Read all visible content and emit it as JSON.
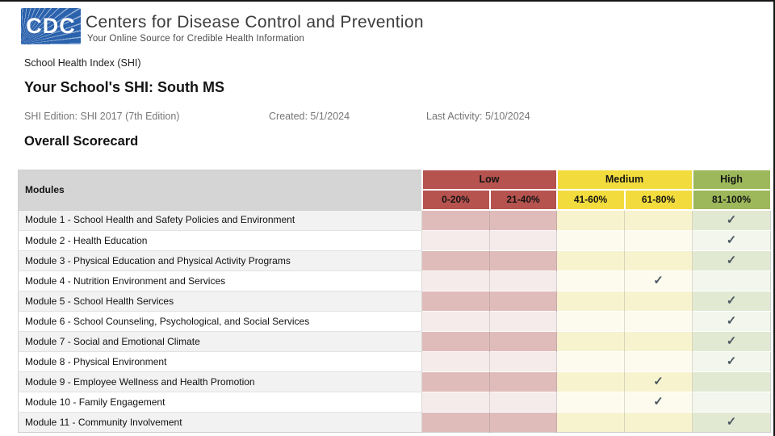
{
  "header": {
    "logo_text": "CDC",
    "org_name": "Centers for Disease Control and Prevention",
    "tagline": "Your Online Source for Credible Health Information"
  },
  "breadcrumb": "School Health Index (SHI)",
  "page": {
    "title": "Your School's SHI: South MS",
    "meta": {
      "edition": "SHI Edition: SHI 2017 (7th Edition)",
      "created": "Created: 5/1/2024",
      "last_activity": "Last Activity: 5/10/2024"
    },
    "section_title": "Overall Scorecard"
  },
  "colors": {
    "logo_blue": "#2b62ad",
    "low": "#b6534f",
    "medium": "#f2dc3d",
    "high": "#9cb85a",
    "modules_head_bg": "#d5d5d5",
    "low_tint_odd": "#dfbcba",
    "low_tint_even": "#f5ebea",
    "medium_tint_odd": "#f8f3cf",
    "medium_tint_even": "#fdfbee",
    "high_tint_odd": "#e2e9d2",
    "high_tint_even": "#f2f6ec",
    "check": "#4c5862"
  },
  "scorecard": {
    "modules_header": "Modules",
    "groups": [
      {
        "label": "Low",
        "ranges": [
          "0-20%",
          "21-40%"
        ]
      },
      {
        "label": "Medium",
        "ranges": [
          "41-60%",
          "61-80%"
        ]
      },
      {
        "label": "High",
        "ranges": [
          "81-100%"
        ]
      }
    ],
    "columns": [
      "0-20%",
      "21-40%",
      "41-60%",
      "61-80%",
      "81-100%"
    ],
    "check_glyph": "✓",
    "rows": [
      {
        "label": "Module 1 - School Health and Safety Policies and Environment",
        "check": "81-100%"
      },
      {
        "label": "Module 2 - Health Education",
        "check": "81-100%"
      },
      {
        "label": "Module 3 - Physical Education and Physical Activity Programs",
        "check": "81-100%"
      },
      {
        "label": "Module 4 - Nutrition Environment and Services",
        "check": "61-80%"
      },
      {
        "label": "Module 5 - School Health Services",
        "check": "81-100%"
      },
      {
        "label": "Module 6 - School Counseling, Psychological, and Social Services",
        "check": "81-100%"
      },
      {
        "label": "Module 7 - Social and Emotional Climate",
        "check": "81-100%"
      },
      {
        "label": "Module 8 - Physical Environment",
        "check": "81-100%"
      },
      {
        "label": "Module 9 - Employee Wellness and Health Promotion",
        "check": "61-80%"
      },
      {
        "label": "Module 10 - Family Engagement",
        "check": "61-80%"
      },
      {
        "label": "Module 11 - Community Involvement",
        "check": "81-100%"
      }
    ]
  }
}
